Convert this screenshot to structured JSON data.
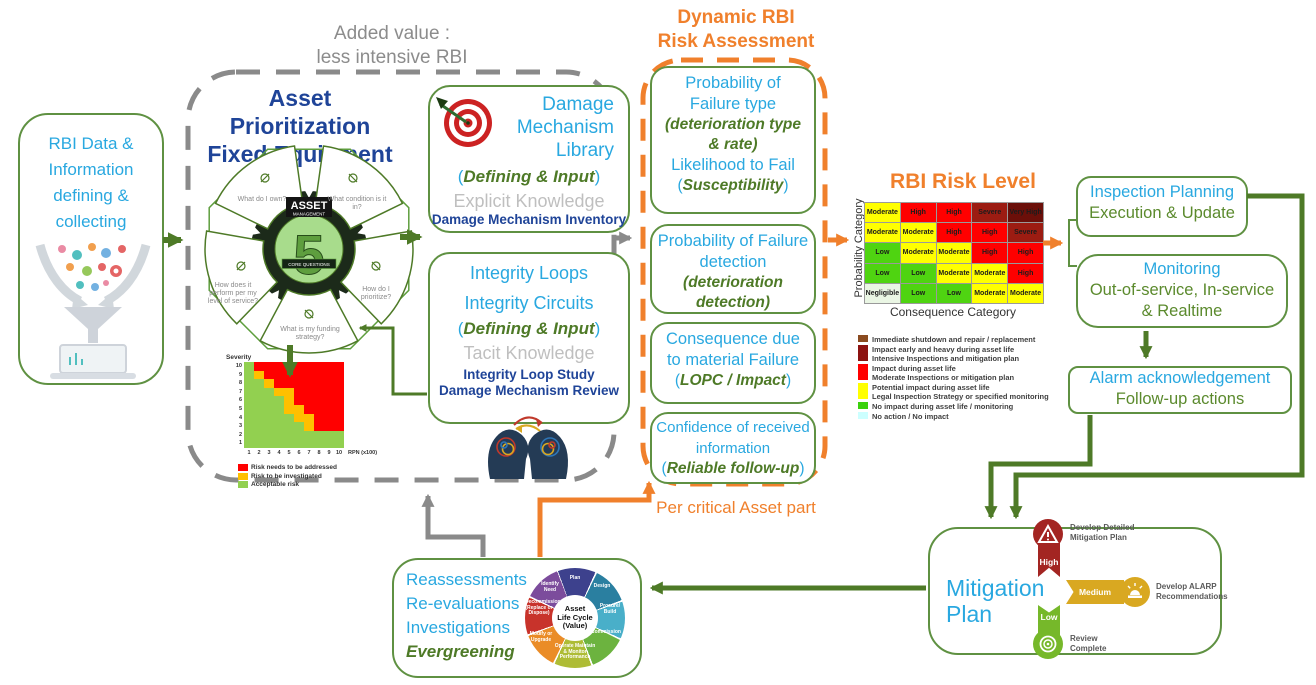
{
  "top_note": {
    "line1": "Added value :",
    "line2": "less intensive  RBI"
  },
  "left_box": {
    "line1": "RBI Data &",
    "line2": "Information",
    "line3": "defining &",
    "line4": "collecting"
  },
  "asset_prioritization": {
    "title1": "Asset Prioritization",
    "title2": "Fixed Equipment",
    "wheel": {
      "center_label": "ASSET",
      "center_sublabel": "MANAGEMENT",
      "center_number": "5",
      "center_banner": "CORE QUESTIONS",
      "questions": [
        "What do I own?",
        "What condition is it in?",
        "How do I prioritize?",
        "What is my funding strategy?",
        "How does it perform per my level of service?"
      ]
    },
    "severity_chart": {
      "y_label": "Severity",
      "x_unit": "RPN (x100)",
      "y_ticks": [
        "10",
        "9",
        "8",
        "7",
        "6",
        "5",
        "4",
        "3",
        "2",
        "1"
      ],
      "x_ticks": [
        "1",
        "2",
        "3",
        "4",
        "5",
        "6",
        "7",
        "8",
        "9",
        "10"
      ],
      "palette": {
        "G": "#92D050",
        "O": "#FFC000",
        "R": "#FF0000"
      },
      "grid": [
        "GRRRRRRRRR",
        "GORRRRRRRR",
        "GGORRRRRRR",
        "GGGOORRRRR",
        "GGGGORRRRR",
        "GGGGOORRRR",
        "GGGGGOORRR",
        "GGGGGGORRR",
        "GGGGGGGGGG",
        "GGGGGGGGGG"
      ],
      "legend": [
        {
          "color": "#FF0000",
          "label": "Risk needs to be addressed"
        },
        {
          "color": "#FFC000",
          "label": "Risk to be investigated"
        },
        {
          "color": "#92D050",
          "label": "Acceptable risk"
        }
      ]
    }
  },
  "damage_box": {
    "t1": "Damage",
    "t2": "Mechanism",
    "t3": "Library",
    "def": {
      "open": "(",
      "text": "Defining & Input",
      "close": ")"
    },
    "knowledge": "Explicit Knowledge",
    "sub": "Damage Mechanism Inventory"
  },
  "integrity_box": {
    "t1": "Integrity Loops",
    "t2": "Integrity Circuits",
    "def": {
      "open": "(",
      "text": "Defining & Input",
      "close": ")"
    },
    "knowledge": "Tacit Knowledge",
    "sub1": "Integrity Loop Study",
    "sub2": "Damage Mechanism Review"
  },
  "dynamic_rbi": {
    "title1": "Dynamic RBI",
    "title2": "Risk Assessment",
    "box1": {
      "l1": "Probability of",
      "l2": "Failure type",
      "l3": "(deterioration type",
      "l4": "& rate)",
      "l5": "Likelihood to Fail",
      "sus": {
        "open": "(",
        "text": "Susceptibility",
        "close": ")"
      }
    },
    "box2": {
      "l1": "Probability of Failure",
      "l2": "detection",
      "l3": "(deterioration",
      "l4": "detection)"
    },
    "box3": {
      "l1": "Consequence  due",
      "l2": "to material Failure",
      "lopc": {
        "open": "(",
        "text": "LOPC / Impact",
        "close": ")"
      }
    },
    "box4": {
      "l1": "Confidence of received",
      "l2": "information",
      "rel": {
        "open": "(",
        "text": "Reliable follow-up",
        "close": ")"
      }
    },
    "footer": "Per critical Asset part"
  },
  "rbi_matrix": {
    "title": "RBI Risk Level",
    "y_axis": "Probability Category",
    "x_axis": "Consequence Category",
    "palette": {
      "Y": "#FFFF00",
      "R": "#FF0000",
      "S": "#9C1C12",
      "V": "#6B0F09",
      "G": "#4FD411",
      "N": "#EAF6E4"
    },
    "rows": [
      {
        "cells": [
          {
            "label": "Moderate",
            "c": "Y"
          },
          {
            "label": "High",
            "c": "R"
          },
          {
            "label": "High",
            "c": "R"
          },
          {
            "label": "Severe",
            "c": "S"
          },
          {
            "label": "Very High",
            "c": "V"
          }
        ]
      },
      {
        "cells": [
          {
            "label": "Moderate",
            "c": "Y"
          },
          {
            "label": "Moderate",
            "c": "Y"
          },
          {
            "label": "High",
            "c": "R"
          },
          {
            "label": "High",
            "c": "R"
          },
          {
            "label": "Severe",
            "c": "S"
          }
        ]
      },
      {
        "cells": [
          {
            "label": "Low",
            "c": "G"
          },
          {
            "label": "Moderate",
            "c": "Y"
          },
          {
            "label": "Moderate",
            "c": "Y"
          },
          {
            "label": "High",
            "c": "R"
          },
          {
            "label": "High",
            "c": "R"
          }
        ]
      },
      {
        "cells": [
          {
            "label": "Low",
            "c": "G"
          },
          {
            "label": "Low",
            "c": "G"
          },
          {
            "label": "Moderate",
            "c": "Y"
          },
          {
            "label": "Moderate",
            "c": "Y"
          },
          {
            "label": "High",
            "c": "R"
          }
        ]
      },
      {
        "cells": [
          {
            "label": "Negligible",
            "c": "N"
          },
          {
            "label": "Low",
            "c": "G"
          },
          {
            "label": "Low",
            "c": "G"
          },
          {
            "label": "Moderate",
            "c": "Y"
          },
          {
            "label": "Moderate",
            "c": "Y"
          }
        ]
      }
    ],
    "legend": [
      {
        "color": "#8A4B20",
        "lines": [
          "Immediate shutdown and repair / replacement"
        ]
      },
      {
        "color": "#8C1210",
        "lines": [
          "Impact early and heavy during asset life",
          "Intensive Inspections and mitigation plan"
        ]
      },
      {
        "color": "#FF0000",
        "lines": [
          "Impact during asset life",
          "Moderate Inspections or mitigation plan"
        ]
      },
      {
        "color": "#FFFF00",
        "lines": [
          "Potential impact during asset life",
          "Legal Inspection Strategy or specified monitoring"
        ]
      },
      {
        "color": "#3BD10C",
        "lines": [
          "No impact during asset life / monitoring"
        ]
      },
      {
        "color": "#CCFFFF",
        "lines": [
          "No action / No impact"
        ]
      }
    ]
  },
  "inspection_box": {
    "l1": "Inspection Planning",
    "l2": "Execution & Update"
  },
  "monitoring_box": {
    "l1": "Monitoring",
    "l2": "Out-of-service, In-service",
    "l3": "& Realtime"
  },
  "alarm_box": {
    "l1": "Alarm acknowledgement",
    "l2": "Follow-up actions"
  },
  "mitigation": {
    "title": "Mitigation Plan",
    "high": {
      "level": "High",
      "label1": "Develop Detailed",
      "label2": "Mitigation Plan"
    },
    "medium": {
      "level": "Medium",
      "label1": "Develop ALARP",
      "label2": "Recommendations"
    },
    "low": {
      "level": "Low",
      "label1": "Review",
      "label2": "Complete"
    }
  },
  "reassessments": {
    "l1": "Reassessments",
    "l2": "Re-evaluations",
    "l3": "Investigations",
    "l4": "Evergreening",
    "lifecycle": {
      "center1": "Asset",
      "center2": "Life Cycle",
      "center3": "(Value)",
      "segments": [
        {
          "label": "Plan",
          "color": "#3D418D"
        },
        {
          "label": "Design",
          "color": "#2A7FA0"
        },
        {
          "label": "Procure/ Build",
          "color": "#49AFC9"
        },
        {
          "label": "Commission",
          "color": "#6CB33F"
        },
        {
          "label": "Operate Maintain & Monitor Performance",
          "color": "#AEBC35"
        },
        {
          "label": "Modify or Upgrade",
          "color": "#EA8C27"
        },
        {
          "label": "Decommission (Replace or Dispose)",
          "color": "#C8332B"
        },
        {
          "label": "Identify Need",
          "color": "#7C4C9C"
        }
      ]
    }
  }
}
